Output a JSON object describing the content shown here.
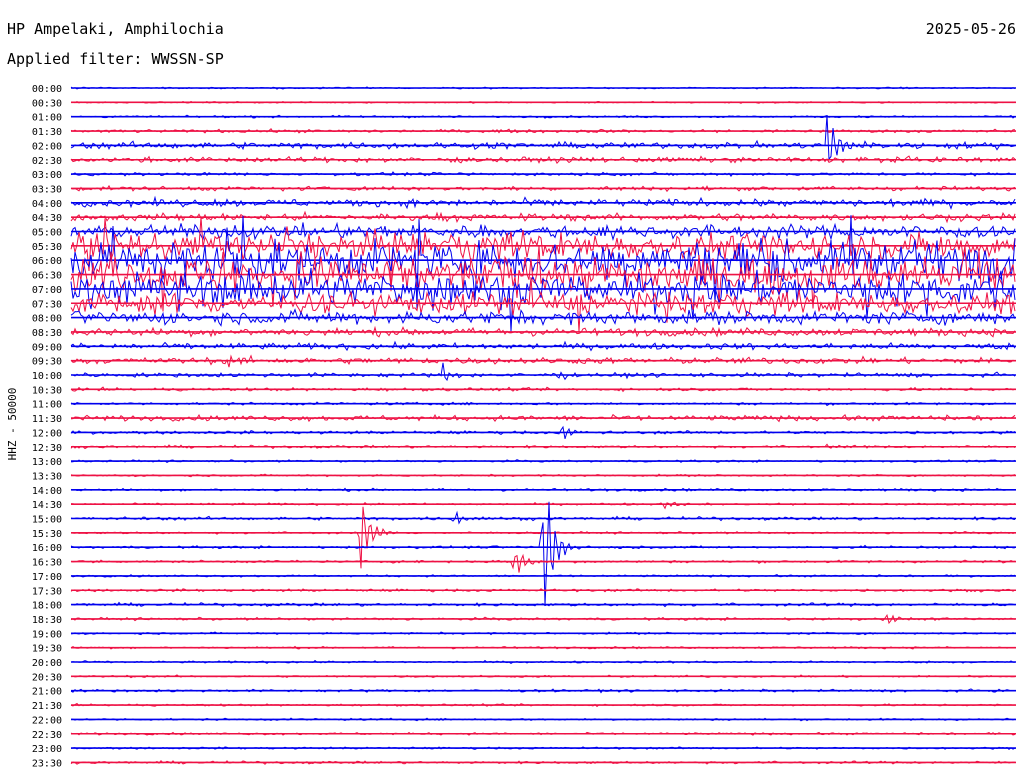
{
  "header": {
    "station": "HP Ampelaki, Amphilochia",
    "date": "2025-05-26",
    "filter": "Applied filter: WWSSN-SP"
  },
  "chart_data": {
    "type": "line",
    "title": "HP Ampelaki, Amphilochia",
    "ylabel": "HHZ - 50000",
    "time_labels": [
      "00:00",
      "00:30",
      "01:00",
      "01:30",
      "02:00",
      "02:30",
      "03:00",
      "03:30",
      "04:00",
      "04:30",
      "05:00",
      "05:30",
      "06:00",
      "06:30",
      "07:00",
      "07:30",
      "08:00",
      "08:30",
      "09:00",
      "09:30",
      "10:00",
      "10:30",
      "11:00",
      "11:30",
      "12:00",
      "12:30",
      "13:00",
      "13:30",
      "14:00",
      "14:30",
      "15:00",
      "15:30",
      "16:00",
      "16:30",
      "17:00",
      "17:30",
      "18:00",
      "18:30",
      "19:00",
      "19:30",
      "20:00",
      "20:30",
      "21:00",
      "21:30",
      "22:00",
      "22:30",
      "23:00",
      "23:30"
    ],
    "trace_colors": [
      "#0000ee",
      "#ee1144"
    ],
    "x_range_minutes": [
      0,
      30
    ],
    "noise_level_by_trace": [
      0.3,
      0.3,
      0.4,
      0.6,
      1.2,
      1.0,
      0.6,
      0.8,
      1.4,
      1.4,
      2.5,
      5.0,
      7.0,
      7.0,
      6.0,
      4.0,
      2.5,
      1.5,
      1.2,
      1.2,
      0.8,
      0.6,
      0.5,
      1.0,
      0.6,
      0.5,
      0.4,
      0.4,
      0.5,
      0.4,
      0.6,
      0.4,
      0.5,
      0.5,
      0.4,
      0.5,
      0.6,
      0.5,
      0.4,
      0.4,
      0.4,
      0.4,
      0.5,
      0.4,
      0.4,
      0.4,
      0.4,
      0.5
    ],
    "events": [
      {
        "trace": "02:00",
        "minute": 24.0,
        "amplitude": 40
      },
      {
        "trace": "09:30",
        "minute": 5.0,
        "amplitude": 9
      },
      {
        "trace": "10:00",
        "minute": 11.8,
        "amplitude": 12
      },
      {
        "trace": "10:00",
        "minute": 15.4,
        "amplitude": 6
      },
      {
        "trace": "12:00",
        "minute": 15.6,
        "amplitude": 10
      },
      {
        "trace": "12:30",
        "minute": 24.0,
        "amplitude": 5
      },
      {
        "trace": "14:30",
        "minute": 18.8,
        "amplitude": 5
      },
      {
        "trace": "15:00",
        "minute": 12.2,
        "amplitude": 9
      },
      {
        "trace": "15:30",
        "minute": 9.2,
        "amplitude": 45
      },
      {
        "trace": "16:00",
        "minute": 15.0,
        "amplitude": 90
      },
      {
        "trace": "16:30",
        "minute": 14.1,
        "amplitude": 18
      },
      {
        "trace": "18:30",
        "minute": 25.9,
        "amplitude": 8
      }
    ]
  }
}
